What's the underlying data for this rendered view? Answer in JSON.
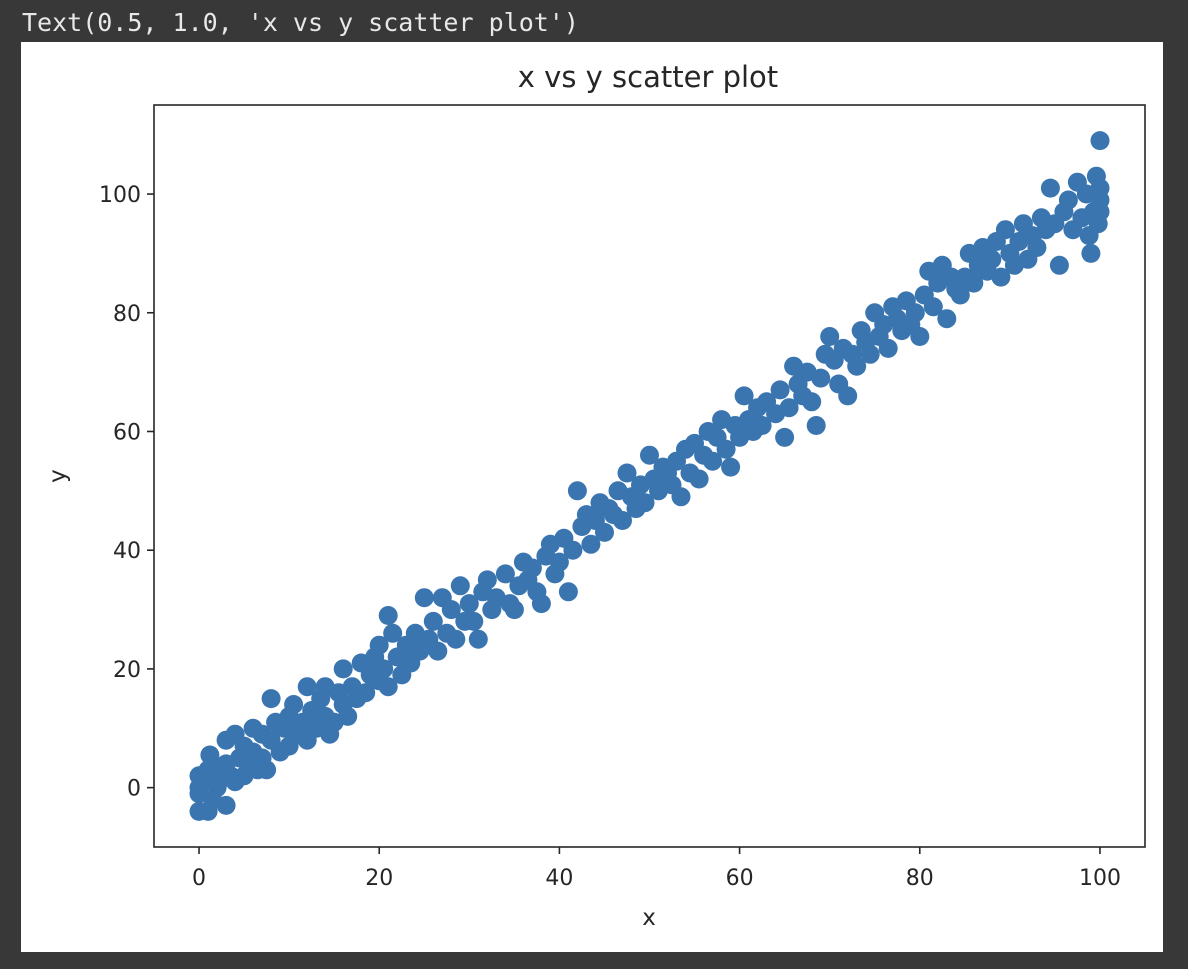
{
  "cell_output": {
    "text": "Text(0.5, 1.0, 'x vs y scatter plot')"
  },
  "chart_data": {
    "type": "scatter",
    "title": "x vs y scatter plot",
    "xlabel": "x",
    "ylabel": "y",
    "xlim": [
      -5,
      105
    ],
    "ylim": [
      -10,
      115
    ],
    "xticks": [
      "0",
      "20",
      "40",
      "60",
      "80",
      "100"
    ],
    "yticks": [
      "0",
      "20",
      "40",
      "60",
      "80",
      "100"
    ],
    "grid": false,
    "marker_color": "#3a75b0",
    "series": [
      {
        "points": [
          [
            0,
            0
          ],
          [
            0,
            2
          ],
          [
            0,
            -1
          ],
          [
            0,
            -4
          ],
          [
            0.5,
            1
          ],
          [
            1,
            -4
          ],
          [
            1,
            3
          ],
          [
            1.2,
            5.5
          ],
          [
            1.5,
            -2
          ],
          [
            2,
            0
          ],
          [
            2,
            3
          ],
          [
            2.5,
            1.5
          ],
          [
            3,
            -3
          ],
          [
            3,
            4
          ],
          [
            3,
            8
          ],
          [
            3.5,
            2
          ],
          [
            4,
            9
          ],
          [
            4,
            1
          ],
          [
            4.5,
            5
          ],
          [
            5,
            2
          ],
          [
            5,
            7
          ],
          [
            5.5,
            4
          ],
          [
            6,
            10
          ],
          [
            6,
            6
          ],
          [
            6.5,
            3
          ],
          [
            7,
            5
          ],
          [
            7,
            9
          ],
          [
            7.5,
            3
          ],
          [
            8,
            15
          ],
          [
            8,
            8
          ],
          [
            8.5,
            11
          ],
          [
            9,
            6
          ],
          [
            9.5,
            10
          ],
          [
            10,
            12
          ],
          [
            10,
            7
          ],
          [
            10.5,
            14
          ],
          [
            11,
            9
          ],
          [
            11.5,
            11
          ],
          [
            12,
            17
          ],
          [
            12,
            8
          ],
          [
            12.5,
            13
          ],
          [
            13,
            10
          ],
          [
            13.5,
            15
          ],
          [
            14,
            12
          ],
          [
            14,
            17
          ],
          [
            14.5,
            9
          ],
          [
            15,
            11
          ],
          [
            15.5,
            16
          ],
          [
            16,
            14
          ],
          [
            16,
            20
          ],
          [
            16.5,
            12
          ],
          [
            17,
            17
          ],
          [
            17.5,
            15
          ],
          [
            18,
            21
          ],
          [
            18.5,
            16
          ],
          [
            19,
            19
          ],
          [
            19.5,
            22
          ],
          [
            20,
            18
          ],
          [
            20,
            24
          ],
          [
            20.5,
            20
          ],
          [
            21,
            17
          ],
          [
            21,
            29
          ],
          [
            21.5,
            26
          ],
          [
            22,
            22
          ],
          [
            22.5,
            19
          ],
          [
            23,
            24
          ],
          [
            23.5,
            21
          ],
          [
            24,
            26
          ],
          [
            24.5,
            23
          ],
          [
            25,
            32
          ],
          [
            25.5,
            25
          ],
          [
            26,
            28
          ],
          [
            26.5,
            23
          ],
          [
            27,
            32
          ],
          [
            27.5,
            26
          ],
          [
            28,
            30
          ],
          [
            28.5,
            25
          ],
          [
            29,
            34
          ],
          [
            29.5,
            28
          ],
          [
            30,
            31
          ],
          [
            30.5,
            28
          ],
          [
            31,
            25
          ],
          [
            31.5,
            33
          ],
          [
            32,
            35
          ],
          [
            32.5,
            30
          ],
          [
            33,
            32
          ],
          [
            34,
            36
          ],
          [
            34.5,
            31
          ],
          [
            35,
            30
          ],
          [
            35.5,
            34
          ],
          [
            36,
            38
          ],
          [
            36.5,
            35
          ],
          [
            37,
            37
          ],
          [
            37.5,
            33
          ],
          [
            38,
            31
          ],
          [
            38.5,
            39
          ],
          [
            39,
            41
          ],
          [
            39.5,
            36
          ],
          [
            40,
            38
          ],
          [
            40.5,
            42
          ],
          [
            41,
            33
          ],
          [
            41.5,
            40
          ],
          [
            42,
            50
          ],
          [
            42.5,
            44
          ],
          [
            43,
            46
          ],
          [
            43.5,
            41
          ],
          [
            44,
            45
          ],
          [
            44.5,
            48
          ],
          [
            45,
            43
          ],
          [
            45.5,
            47
          ],
          [
            46,
            46
          ],
          [
            46.5,
            50
          ],
          [
            47,
            45
          ],
          [
            47.5,
            53
          ],
          [
            48,
            49
          ],
          [
            48.5,
            47
          ],
          [
            49,
            51
          ],
          [
            49.5,
            48
          ],
          [
            50,
            56
          ],
          [
            50.5,
            52
          ],
          [
            51,
            50
          ],
          [
            51.5,
            54
          ],
          [
            52,
            53
          ],
          [
            52.5,
            51
          ],
          [
            53,
            55
          ],
          [
            53.5,
            49
          ],
          [
            54,
            57
          ],
          [
            54.5,
            53
          ],
          [
            55,
            58
          ],
          [
            55.5,
            52
          ],
          [
            56,
            56
          ],
          [
            56.5,
            60
          ],
          [
            57,
            55
          ],
          [
            57.5,
            59
          ],
          [
            58,
            62
          ],
          [
            58.5,
            57
          ],
          [
            59,
            54
          ],
          [
            59.5,
            61
          ],
          [
            60,
            59
          ],
          [
            60.5,
            66
          ],
          [
            61,
            62
          ],
          [
            61.5,
            60
          ],
          [
            62,
            64
          ],
          [
            62.5,
            61
          ],
          [
            63,
            65
          ],
          [
            64,
            63
          ],
          [
            64.5,
            67
          ],
          [
            65,
            59
          ],
          [
            65.5,
            64
          ],
          [
            66,
            71
          ],
          [
            66.5,
            68
          ],
          [
            67,
            66
          ],
          [
            67.5,
            70
          ],
          [
            68,
            65
          ],
          [
            68.5,
            61
          ],
          [
            69,
            69
          ],
          [
            69.5,
            73
          ],
          [
            70,
            76
          ],
          [
            70.5,
            72
          ],
          [
            71,
            68
          ],
          [
            71.5,
            74
          ],
          [
            72,
            66
          ],
          [
            72.5,
            73
          ],
          [
            73,
            71
          ],
          [
            73.5,
            77
          ],
          [
            74,
            75
          ],
          [
            74.5,
            73
          ],
          [
            75,
            80
          ],
          [
            75.5,
            76
          ],
          [
            76,
            78
          ],
          [
            76.5,
            74
          ],
          [
            77,
            81
          ],
          [
            77.5,
            79
          ],
          [
            78,
            77
          ],
          [
            78.5,
            82
          ],
          [
            79,
            78
          ],
          [
            79.5,
            80
          ],
          [
            80,
            76
          ],
          [
            80.5,
            83
          ],
          [
            81,
            87
          ],
          [
            81.5,
            81
          ],
          [
            82,
            85
          ],
          [
            82.5,
            88
          ],
          [
            83,
            79
          ],
          [
            83.5,
            86
          ],
          [
            84,
            84
          ],
          [
            84.5,
            83
          ],
          [
            85,
            86
          ],
          [
            85.5,
            90
          ],
          [
            86,
            85
          ],
          [
            86.5,
            88
          ],
          [
            87,
            91
          ],
          [
            87.5,
            87
          ],
          [
            88,
            89
          ],
          [
            88.5,
            92
          ],
          [
            89,
            86
          ],
          [
            89.5,
            94
          ],
          [
            90,
            90
          ],
          [
            90.5,
            88
          ],
          [
            91,
            92
          ],
          [
            91.5,
            95
          ],
          [
            92,
            89
          ],
          [
            92.5,
            93
          ],
          [
            93,
            91
          ],
          [
            93.5,
            96
          ],
          [
            94,
            94
          ],
          [
            94.5,
            101
          ],
          [
            95,
            95
          ],
          [
            95.5,
            88
          ],
          [
            96,
            97
          ],
          [
            96.5,
            99
          ],
          [
            97,
            94
          ],
          [
            97.5,
            102
          ],
          [
            98,
            96
          ],
          [
            98.5,
            100
          ],
          [
            98.8,
            93
          ],
          [
            99,
            90
          ],
          [
            99.3,
            97
          ],
          [
            99.6,
            103
          ],
          [
            99.8,
            95
          ],
          [
            100,
            99
          ],
          [
            100,
            101
          ],
          [
            100,
            109
          ],
          [
            100,
            97
          ]
        ]
      }
    ]
  }
}
